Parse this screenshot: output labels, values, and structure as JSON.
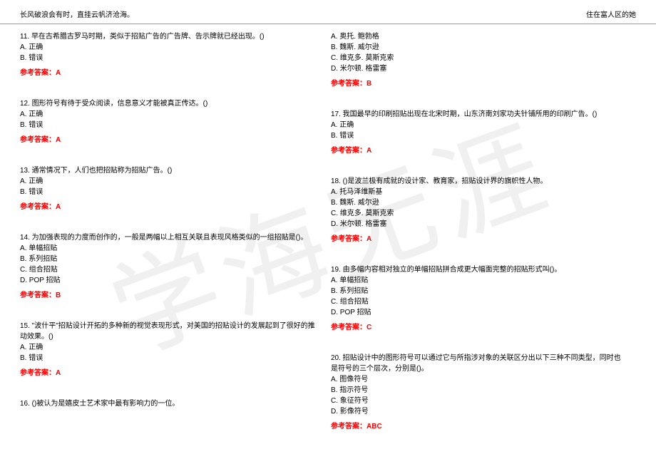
{
  "header": {
    "left": "长风破浪会有时，直挂云帆济沧海。",
    "right": "住在富人区的她"
  },
  "watermark": "学海无涯",
  "colors": {
    "text": "#000000",
    "answer": "#ff0000",
    "watermark": "#f0f0f0",
    "border": "#999999",
    "background": "#ffffff"
  },
  "left_col": [
    {
      "q": "11. 早在古希腊古罗马时期，类似于招贴广告的广告牌、告示牌就已经出现。()",
      "opts": [
        "A. 正确",
        "B. 错误"
      ],
      "ans": "参考答案：A"
    },
    {
      "q": "12. 图形符号有待于受众阅读，信息意义才能被真正传达。()",
      "opts": [
        "A. 正确",
        "B. 错误"
      ],
      "ans": "参考答案：A"
    },
    {
      "q": "13. 通常情况下，人们也把招贴称为招贴广告。()",
      "opts": [
        "A. 正确",
        "B. 错误"
      ],
      "ans": "参考答案：A"
    },
    {
      "q": "14. 为加强表现的力度而创作的，一般是两幅以上相互关联且表现风格类似的一组招贴是()。",
      "opts": [
        "A. 单幅招贴",
        "B. 系列招贴",
        "C. 组合招贴",
        "D. POP 招贴"
      ],
      "ans": "参考答案：B"
    },
    {
      "q": "15. \"波什平\"招贴设计开拓的多种新的视觉表现形式，对美国的招贴设计的发展起到了很好的推动效果。()",
      "opts": [
        "A. 正确",
        "B. 错误"
      ],
      "ans": "参考答案：A"
    },
    {
      "q": "16. ()被认为是嬉皮士艺术家中最有影响力的一位。",
      "opts": [],
      "ans": ""
    }
  ],
  "right_col": [
    {
      "q": "",
      "opts": [
        "A. 奥托. 鲍勃格",
        "B. 魏斯. 威尔逊",
        "C. 维克多. 莫斯克索",
        "D. 米尔顿. 格雷塞"
      ],
      "ans": "参考答案：B"
    },
    {
      "q": "17. 我国最早的印刷招贴出现在北宋时期，山东济南刘家功夫针铺所用的印刷广告。()",
      "opts": [
        "A. 正确",
        "B. 错误"
      ],
      "ans": "参考答案：A"
    },
    {
      "q": "18. ()是波兰极有成就的设计家、教育家，招贴设计界的旗帜性人物。",
      "opts": [
        "A. 托马泽维斯基",
        "B. 魏斯. 威尔逊",
        "C. 维克多. 莫斯克索",
        "D. 米尔顿. 格雷塞"
      ],
      "ans": "参考答案：A"
    },
    {
      "q": "19. 由多幅内容相对独立的单幅招贴拼合成更大幅面完整的招贴形式叫()。",
      "opts": [
        "A. 单幅招贴",
        "B. 系列招贴",
        "C. 组合招贴",
        "D. POP 招贴"
      ],
      "ans": "参考答案：C"
    },
    {
      "q": "20. 招贴设计中的图形符号可以通过它与所指涉对象的关联区分出以下三种不同类型，同时也是符号的三个层次，分别是()。",
      "opts": [
        "A. 图像符号",
        "B. 指示符号",
        "C. 象征符号",
        "D. 影像符号"
      ],
      "ans": "参考答案：ABC"
    }
  ]
}
